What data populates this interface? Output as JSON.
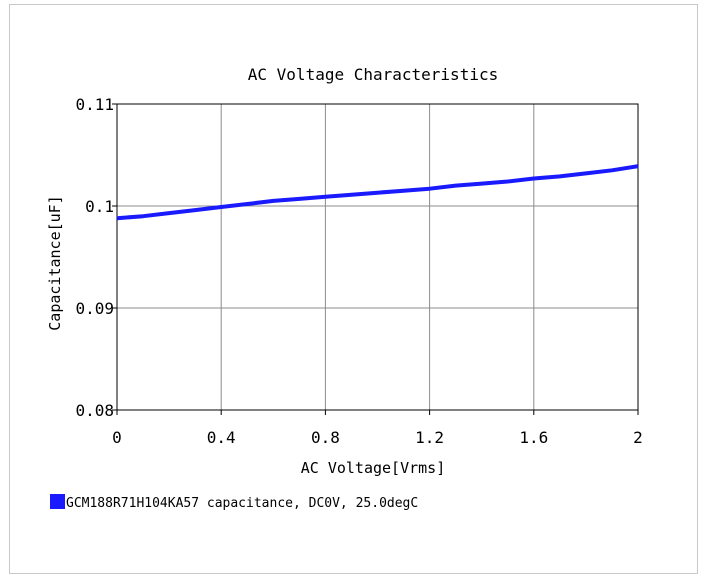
{
  "chart_data": {
    "type": "line",
    "title": "AC Voltage Characteristics",
    "xlabel": "AC Voltage[Vrms]",
    "ylabel": "Capacitance[uF]",
    "xlim": [
      0,
      2
    ],
    "ylim": [
      0.08,
      0.11
    ],
    "x_ticks": [
      0,
      0.4,
      0.8,
      1.2,
      1.6,
      2
    ],
    "x_tick_labels": [
      "0",
      "0.4",
      "0.8",
      "1.2",
      "1.6",
      "2"
    ],
    "y_ticks": [
      0.08,
      0.09,
      0.1,
      0.11
    ],
    "y_tick_labels": [
      "0.08",
      "0.09",
      "0.1",
      "0.11"
    ],
    "grid": true,
    "legend_position": "bottom-left",
    "series": [
      {
        "name": "GCM188R71H104KA57 capacitance, DC0V, 25.0degC",
        "color": "#1a1aff",
        "x": [
          0,
          0.1,
          0.2,
          0.3,
          0.4,
          0.5,
          0.6,
          0.7,
          0.8,
          0.9,
          1.0,
          1.1,
          1.2,
          1.3,
          1.4,
          1.5,
          1.6,
          1.7,
          1.8,
          1.9,
          2.0
        ],
        "y": [
          0.0988,
          0.099,
          0.0993,
          0.0996,
          0.0999,
          0.1002,
          0.1005,
          0.1007,
          0.1009,
          0.1011,
          0.1013,
          0.1015,
          0.1017,
          0.102,
          0.1022,
          0.1024,
          0.1027,
          0.1029,
          0.1032,
          0.1035,
          0.1039
        ]
      }
    ]
  }
}
